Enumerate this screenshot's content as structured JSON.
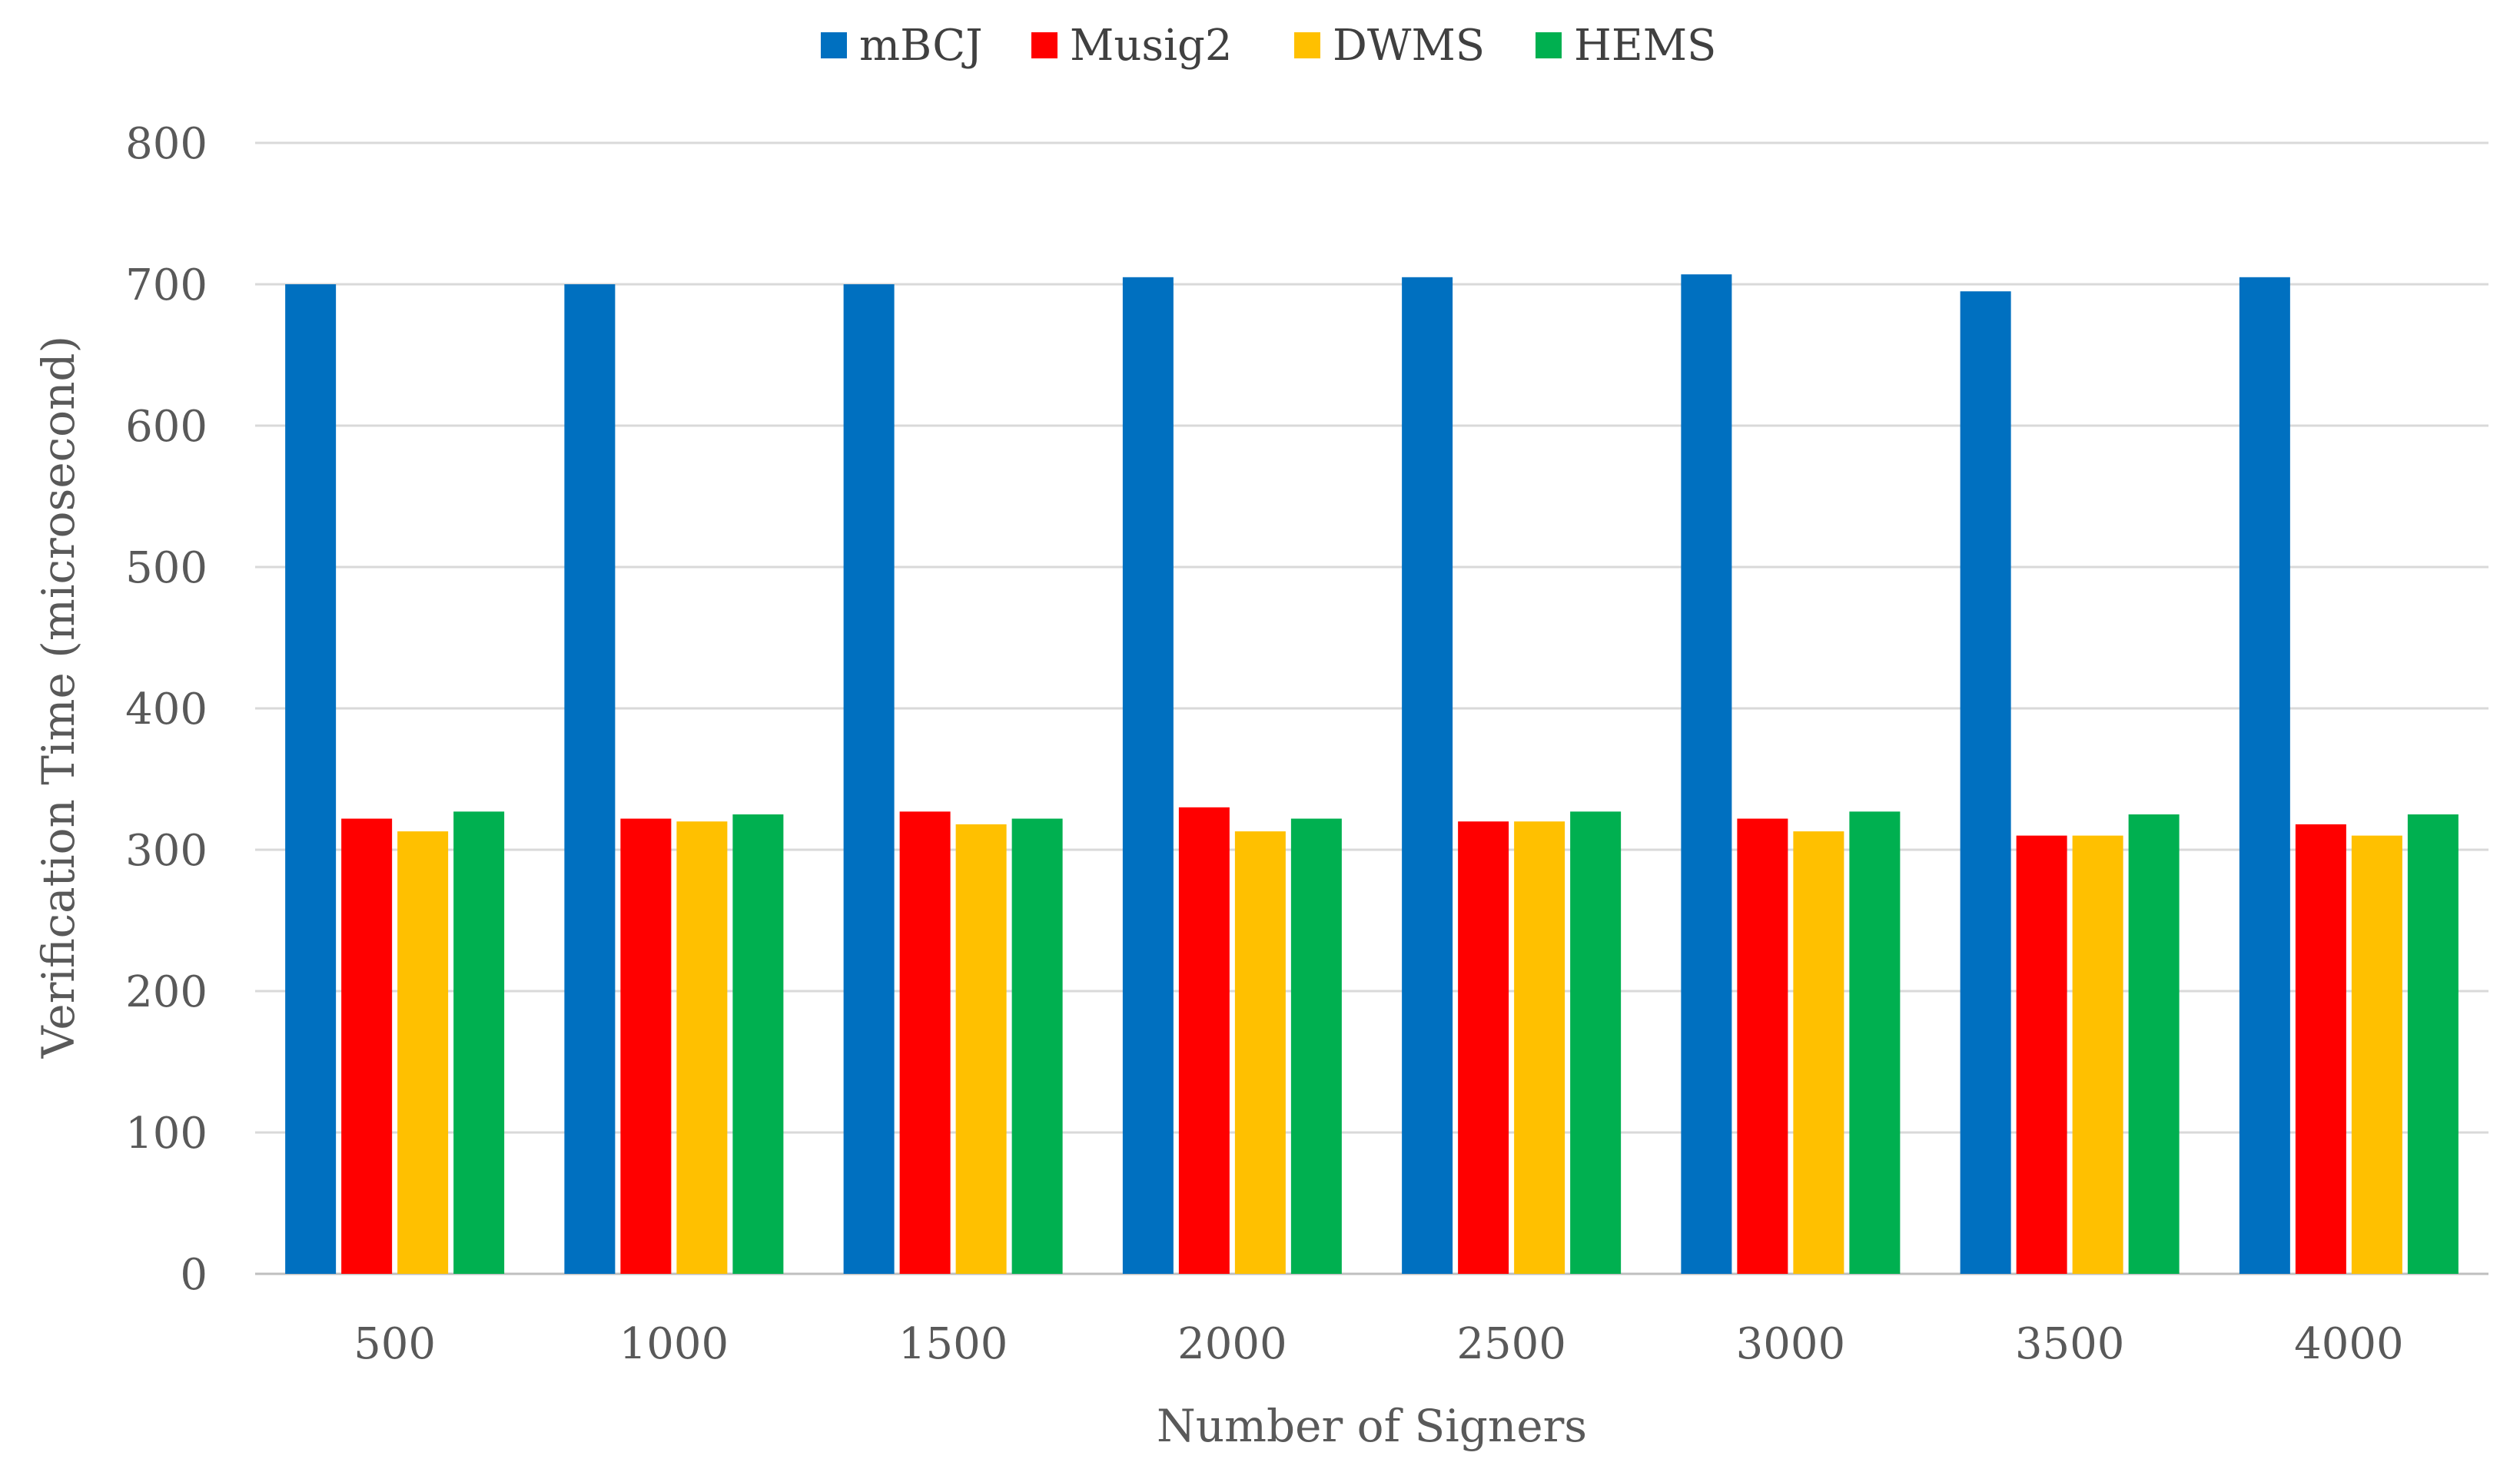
{
  "chart_data": {
    "type": "bar",
    "title": "",
    "xlabel": "Number of Signers",
    "ylabel": "Verification Time (microsecond)",
    "ylim": [
      0,
      800
    ],
    "yticks": [
      0,
      100,
      200,
      300,
      400,
      500,
      600,
      700,
      800
    ],
    "grid": true,
    "legend_position": "top",
    "categories": [
      "500",
      "1000",
      "1500",
      "2000",
      "2500",
      "3000",
      "3500",
      "4000"
    ],
    "series": [
      {
        "name": "mBCJ",
        "color": "#0070C0",
        "values": [
          700,
          700,
          700,
          705,
          705,
          707,
          695,
          705
        ]
      },
      {
        "name": "Musig2",
        "color": "#FF0000",
        "values": [
          322,
          322,
          327,
          330,
          320,
          322,
          310,
          318
        ]
      },
      {
        "name": "DWMS",
        "color": "#FFC000",
        "values": [
          313,
          320,
          318,
          313,
          320,
          313,
          310,
          310
        ]
      },
      {
        "name": "HEMS",
        "color": "#00B050",
        "values": [
          327,
          325,
          322,
          322,
          327,
          327,
          325,
          325
        ]
      }
    ]
  }
}
